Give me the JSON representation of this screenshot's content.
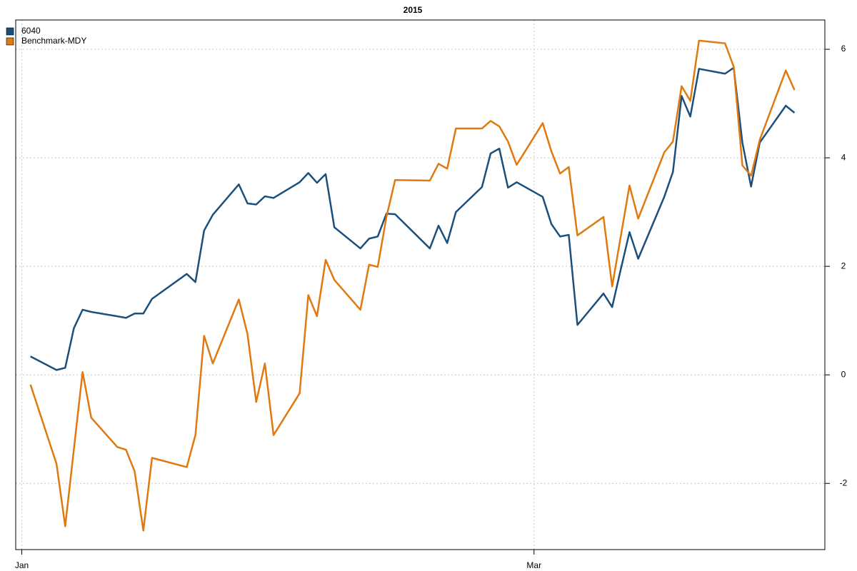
{
  "chart_data": {
    "type": "line",
    "title": "2015",
    "x": [
      1,
      4,
      5,
      6,
      7,
      8,
      11,
      12,
      13,
      14,
      15,
      19,
      20,
      21,
      22,
      25,
      26,
      27,
      28,
      29,
      32,
      33,
      34,
      35,
      36,
      39,
      40,
      41,
      42,
      43,
      47,
      48,
      49,
      50,
      53,
      54,
      55,
      56,
      57,
      60,
      61,
      62,
      63,
      64,
      67,
      68,
      69,
      70,
      71,
      74,
      75,
      76,
      77,
      78,
      81,
      82,
      83,
      84,
      85,
      88,
      89
    ],
    "xlim": [
      -0.7,
      92.5
    ],
    "xticks": [
      {
        "value": 0,
        "label": "Jan"
      },
      {
        "value": 59,
        "label": "Mar"
      }
    ],
    "ylim": [
      -3.22,
      6.54
    ],
    "yticks": [
      -2,
      0,
      2,
      4,
      6
    ],
    "grid": true,
    "legend": "top-left",
    "series": [
      {
        "name": "6040",
        "color": "#1b4f7c",
        "values": [
          0.34,
          0.09,
          0.13,
          0.86,
          1.2,
          1.16,
          1.08,
          1.05,
          1.13,
          1.13,
          1.4,
          1.86,
          1.71,
          2.66,
          2.95,
          3.51,
          3.16,
          3.14,
          3.29,
          3.26,
          3.55,
          3.72,
          3.54,
          3.7,
          2.72,
          2.33,
          2.51,
          2.55,
          2.97,
          2.96,
          2.33,
          2.75,
          2.43,
          3.0,
          3.46,
          4.08,
          4.17,
          3.45,
          3.55,
          3.28,
          2.78,
          2.55,
          2.58,
          0.92,
          1.5,
          1.25,
          1.95,
          2.63,
          2.14,
          3.28,
          3.74,
          5.14,
          4.76,
          5.64,
          5.55,
          5.66,
          4.28,
          3.47,
          4.28,
          4.96,
          4.83
        ]
      },
      {
        "name": "Benchmark-MDY",
        "color": "#e07a10",
        "values": [
          -0.18,
          -1.64,
          -2.79,
          -1.37,
          0.05,
          -0.79,
          -1.33,
          -1.38,
          -1.78,
          -2.87,
          -1.53,
          -1.7,
          -1.11,
          0.72,
          0.21,
          1.39,
          0.75,
          -0.5,
          0.21,
          -1.11,
          -0.34,
          1.47,
          1.08,
          2.12,
          1.75,
          1.2,
          2.03,
          1.99,
          2.91,
          3.59,
          3.58,
          3.89,
          3.8,
          4.54,
          4.54,
          4.68,
          4.58,
          4.3,
          3.87,
          4.64,
          4.12,
          3.71,
          3.83,
          2.57,
          2.91,
          1.63,
          2.56,
          3.49,
          2.88,
          4.1,
          4.3,
          5.32,
          5.05,
          6.16,
          6.11,
          5.68,
          3.86,
          3.67,
          4.33,
          5.61,
          5.25
        ]
      }
    ]
  }
}
